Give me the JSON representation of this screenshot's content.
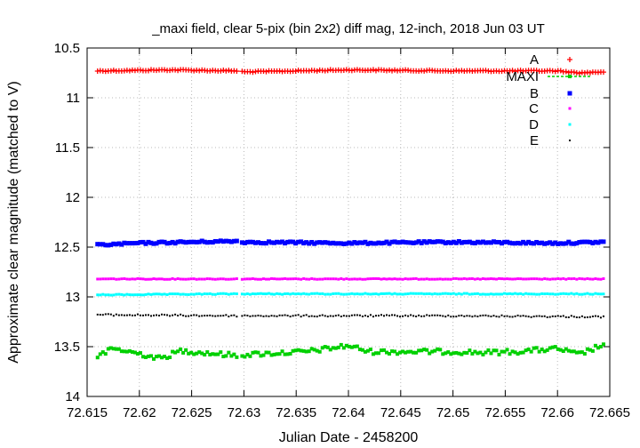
{
  "chart_data": {
    "type": "scatter",
    "title": "_maxi field, clear 5-pix (bin 2x2) diff mag, 12-inch, 2018 Jun 03 UT",
    "xlabel": "Julian Date - 2458200",
    "ylabel": "Approximate clear magnitude (matched to V)",
    "xlim": [
      72.615,
      72.665
    ],
    "ylim": [
      14,
      10.5
    ],
    "y_inverted": true,
    "grid": true,
    "legend_position": "top-right",
    "x_ticks": [
      "72.615",
      "72.62",
      "72.625",
      "72.63",
      "72.635",
      "72.64",
      "72.645",
      "72.65",
      "72.655",
      "72.66",
      "72.665"
    ],
    "y_ticks": [
      "10.5",
      "11",
      "11.5",
      "12",
      "12.5",
      "13",
      "13.5",
      "14"
    ],
    "observations": {
      "x_start": 72.616,
      "x_end": 72.6644,
      "n_points": 190,
      "gap": [
        72.6294,
        72.6298
      ]
    },
    "series": [
      {
        "name": "A",
        "color": "#ff0000",
        "marker": "plus",
        "mean": 10.73,
        "profile": [
          [
            72.616,
            10.73
          ],
          [
            72.623,
            10.72
          ],
          [
            72.6293,
            10.73
          ],
          [
            72.63,
            10.74
          ],
          [
            72.64,
            10.72
          ],
          [
            72.65,
            10.73
          ],
          [
            72.66,
            10.73
          ],
          [
            72.662,
            10.75
          ],
          [
            72.6644,
            10.74
          ]
        ]
      },
      {
        "name": "MAXI",
        "color": "#00d000",
        "marker": "filled-square",
        "line": "dashed",
        "mean": 13.56,
        "profile": [
          [
            72.616,
            13.6
          ],
          [
            72.6175,
            13.52
          ],
          [
            72.62,
            13.57
          ],
          [
            72.622,
            13.62
          ],
          [
            72.624,
            13.54
          ],
          [
            72.6293,
            13.59
          ],
          [
            72.63,
            13.58
          ],
          [
            72.632,
            13.57
          ],
          [
            72.636,
            13.55
          ],
          [
            72.64,
            13.49
          ],
          [
            72.642,
            13.55
          ],
          [
            72.645,
            13.55
          ],
          [
            72.65,
            13.55
          ],
          [
            72.653,
            13.56
          ],
          [
            72.656,
            13.55
          ],
          [
            72.66,
            13.52
          ],
          [
            72.662,
            13.58
          ],
          [
            72.6644,
            13.48
          ]
        ]
      },
      {
        "name": "B",
        "color": "#0000ff",
        "marker": "filled-box",
        "mean": 12.46,
        "profile": [
          [
            72.616,
            12.48
          ],
          [
            72.62,
            12.46
          ],
          [
            72.6293,
            12.44
          ],
          [
            72.63,
            12.45
          ],
          [
            72.64,
            12.46
          ],
          [
            72.65,
            12.45
          ],
          [
            72.66,
            12.46
          ],
          [
            72.6644,
            12.45
          ]
        ]
      },
      {
        "name": "C",
        "color": "#ff00ff",
        "marker": "square",
        "mean": 12.82,
        "profile": [
          [
            72.616,
            12.82
          ],
          [
            72.6293,
            12.82
          ],
          [
            72.63,
            12.82
          ],
          [
            72.65,
            12.82
          ],
          [
            72.6644,
            12.82
          ]
        ]
      },
      {
        "name": "D",
        "color": "#00ffff",
        "marker": "square",
        "mean": 12.97,
        "profile": [
          [
            72.616,
            12.98
          ],
          [
            72.6293,
            12.97
          ],
          [
            72.63,
            12.97
          ],
          [
            72.65,
            12.97
          ],
          [
            72.6644,
            12.97
          ]
        ]
      },
      {
        "name": "E",
        "color": "#000000",
        "marker": "dot",
        "mean": 13.19,
        "profile": [
          [
            72.616,
            13.18
          ],
          [
            72.6293,
            13.19
          ],
          [
            72.63,
            13.19
          ],
          [
            72.65,
            13.19
          ],
          [
            72.6644,
            13.2
          ]
        ]
      }
    ]
  }
}
